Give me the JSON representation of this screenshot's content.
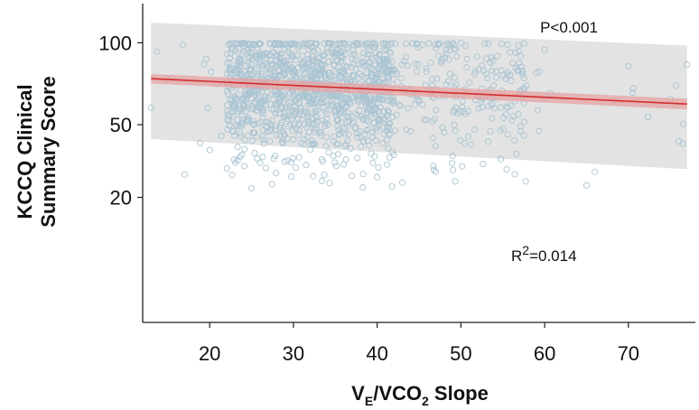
{
  "chart_data": {
    "type": "scatter",
    "xlabel_parts": {
      "v": "V",
      "sub_e": "E",
      "mid": "/VCO",
      "sub_2": "2",
      "end": " Slope"
    },
    "ylabel_lines": [
      "KCCQ Clinical",
      "Summary Score"
    ],
    "xlim": [
      12,
      78
    ],
    "ylim": [
      0,
      130
    ],
    "y_axis_scale": "square-root",
    "xticks": [
      20,
      30,
      40,
      50,
      60,
      70
    ],
    "xtick_labels": [
      "20",
      "30",
      "40",
      "50",
      "60",
      "70"
    ],
    "yticks": [
      20,
      50,
      100
    ],
    "ytick_labels": [
      "20",
      "50",
      "100"
    ],
    "grid": false,
    "annotations": {
      "p_value": "P<0.001",
      "r2_prefix": "R",
      "r2_sup": "2",
      "r2_suffix": "=0.014"
    },
    "regression_line": {
      "x": [
        13,
        77
      ],
      "y": [
        76,
        61
      ]
    },
    "confidence_band": {
      "x": [
        13,
        77
      ],
      "lower": [
        73,
        58
      ],
      "upper": [
        79,
        64
      ]
    },
    "prediction_band": {
      "x": [
        13,
        77
      ],
      "lower": [
        43,
        30
      ],
      "upper": [
        115,
        98
      ]
    },
    "point_cloud": {
      "n_points": 1400,
      "x_range": [
        13,
        77
      ],
      "y_range": [
        23,
        100
      ],
      "dense_x_range": [
        22,
        42
      ],
      "ceiling": 100
    },
    "sample_points": [
      {
        "x": 13,
        "y": 59
      },
      {
        "x": 17,
        "y": 28
      },
      {
        "x": 20,
        "y": 38
      },
      {
        "x": 25,
        "y": 23
      },
      {
        "x": 40,
        "y": 27
      },
      {
        "x": 43,
        "y": 25
      },
      {
        "x": 47,
        "y": 29
      },
      {
        "x": 49,
        "y": 100
      },
      {
        "x": 50,
        "y": 100
      },
      {
        "x": 60,
        "y": 95
      },
      {
        "x": 65,
        "y": 24
      },
      {
        "x": 66,
        "y": 29
      },
      {
        "x": 70,
        "y": 84
      },
      {
        "x": 75,
        "y": 64
      },
      {
        "x": 76,
        "y": 42
      },
      {
        "x": 77,
        "y": 85
      }
    ],
    "colors": {
      "points": "#a9c4d2",
      "regression": "#d42c2c",
      "confidence_band": "#e6a3a3",
      "prediction_band": "#e3e3e3",
      "axes": "#222222"
    }
  }
}
